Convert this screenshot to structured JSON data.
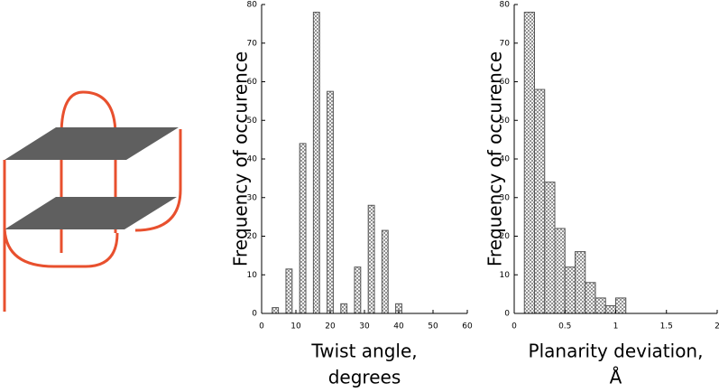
{
  "chart_data": [
    {
      "type": "bar",
      "ylabel": "Frequency of occurence",
      "xlabel": [
        "Twist angle,",
        "degrees"
      ],
      "x": [
        4,
        8,
        12,
        16,
        20,
        24,
        28,
        32,
        36,
        40
      ],
      "values": [
        1.5,
        11.5,
        44,
        78,
        57.5,
        2.5,
        12,
        28,
        21.5,
        2.5
      ],
      "xlim": [
        0,
        60
      ],
      "xticks": [
        0,
        10,
        20,
        30,
        40,
        50,
        60
      ],
      "ylim": [
        0,
        80
      ],
      "yticks": [
        0,
        10,
        20,
        30,
        40,
        50,
        60,
        70,
        80
      ],
      "color": "#555555"
    },
    {
      "type": "histogram",
      "ylabel": "Frequency of occurence",
      "xlabel": [
        "Planarity deviation,",
        "Å"
      ],
      "bins": [
        0.1,
        0.2,
        0.3,
        0.4,
        0.5,
        0.6,
        0.7,
        0.8,
        0.9,
        1.0,
        1.1
      ],
      "values": [
        78,
        58,
        34,
        22,
        12,
        16,
        8,
        4,
        2,
        4
      ],
      "xlim": [
        0,
        2
      ],
      "xticks": [
        0,
        0.5,
        1,
        1.5,
        2
      ],
      "ylim": [
        0,
        80
      ],
      "yticks": [
        0,
        10,
        20,
        30,
        40,
        50,
        60,
        70,
        80
      ],
      "color": "#555555"
    }
  ]
}
